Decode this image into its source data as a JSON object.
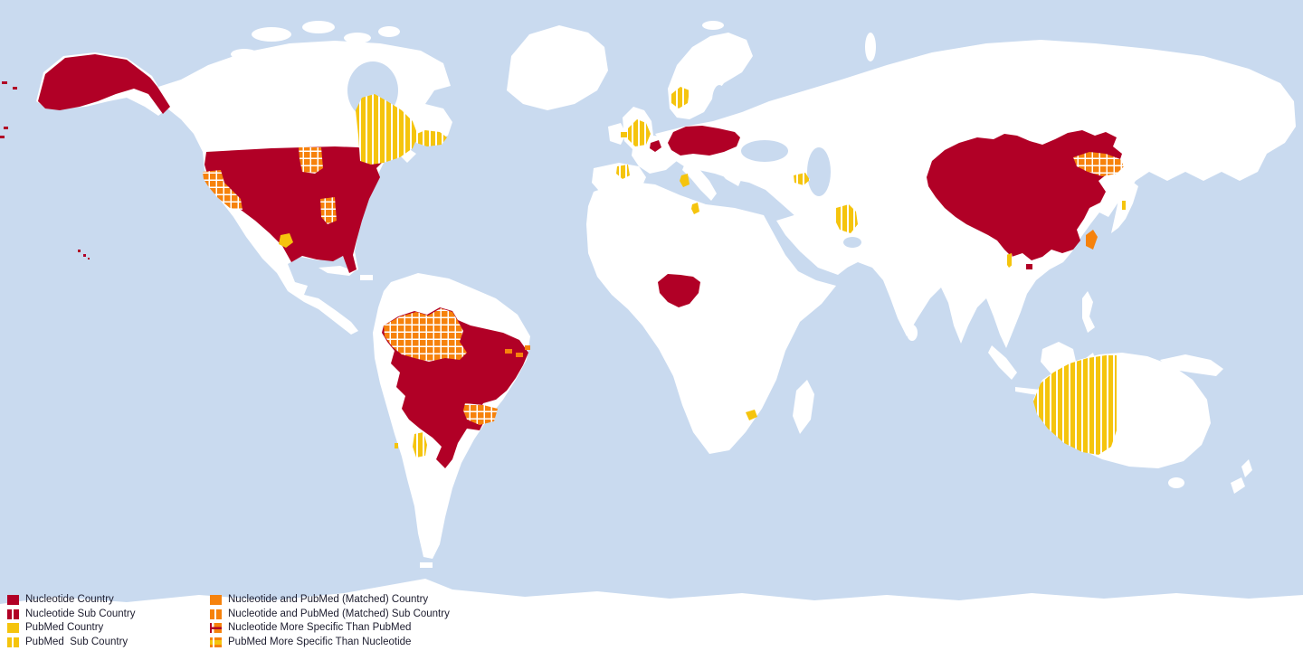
{
  "chart_data": {
    "type": "choropleth_map",
    "projection": "equirectangular world map",
    "categories": [
      "Nucleotide Country",
      "Nucleotide Sub Country",
      "PubMed Country",
      "PubMed  Sub Country",
      "Nucleotide and PubMed (Matched) Country",
      "Nucleotide and PubMed (Matched) Sub Country",
      "Nucleotide More Specific Than PubMed",
      "PubMed More Specific Than Nucleotide"
    ],
    "regions": [
      {
        "region": "United States (incl. Alaska, Hawaii)",
        "category": "Nucleotide Sub Country"
      },
      {
        "region": "California (US)",
        "category": "Nucleotide and PubMed (Matched) Sub Country"
      },
      {
        "region": "Minnesota (US)",
        "category": "Nucleotide and PubMed (Matched) Sub Country"
      },
      {
        "region": "Mississippi (US)",
        "category": "Nucleotide and PubMed (Matched) Sub Country"
      },
      {
        "region": "Quebec (Canada)",
        "category": "PubMed Sub Country"
      },
      {
        "region": "Newfoundland (Canada)",
        "category": "PubMed Sub Country"
      },
      {
        "region": "Central Mexico",
        "category": "PubMed Sub Country"
      },
      {
        "region": "Brazil",
        "category": "Nucleotide Sub Country"
      },
      {
        "region": "Amazonas (Brazil)",
        "category": "Nucleotide and PubMed (Matched) Sub Country"
      },
      {
        "region": "Sao Paulo (Brazil)",
        "category": "Nucleotide and PubMed (Matched) Sub Country"
      },
      {
        "region": "Northeast Brazil coast",
        "category": "Nucleotide and PubMed (Matched) Sub Country"
      },
      {
        "region": "Cordoba (Argentina)",
        "category": "PubMed Sub Country"
      },
      {
        "region": "Central Chile",
        "category": "PubMed Sub Country"
      },
      {
        "region": "England (United Kingdom)",
        "category": "PubMed Sub Country"
      },
      {
        "region": "Eastern Ireland",
        "category": "PubMed Sub Country"
      },
      {
        "region": "Southern Norway",
        "category": "PubMed Sub Country"
      },
      {
        "region": "Galicia (Spain)",
        "category": "PubMed Sub Country"
      },
      {
        "region": "Ile-de-France (France)",
        "category": "Nucleotide Sub Country"
      },
      {
        "region": "Germany",
        "category": "Nucleotide Country"
      },
      {
        "region": "Poland",
        "category": "Nucleotide Country"
      },
      {
        "region": "Sardinia (Italy)",
        "category": "PubMed Sub Country"
      },
      {
        "region": "Northern Tunisia",
        "category": "PubMed Sub Country"
      },
      {
        "region": "Eastern Turkey",
        "category": "PubMed Sub Country"
      },
      {
        "region": "Southern Iran",
        "category": "PubMed Sub Country"
      },
      {
        "region": "Nigeria",
        "category": "Nucleotide Country"
      },
      {
        "region": "Gauteng (South Africa)",
        "category": "PubMed Sub Country"
      },
      {
        "region": "China",
        "category": "Nucleotide Sub Country"
      },
      {
        "region": "Jilin (China)",
        "category": "Nucleotide and PubMed (Matched) Sub Country"
      },
      {
        "region": "Taiwan",
        "category": "Nucleotide and PubMed (Matched) Country"
      },
      {
        "region": "Honshu (Japan)",
        "category": "PubMed Sub Country"
      },
      {
        "region": "Myanmar",
        "category": "PubMed Sub Country"
      },
      {
        "region": "Western Australia",
        "category": "PubMed Sub Country"
      }
    ]
  },
  "map": {
    "ocean_color": "#C9DAEF",
    "land_color": "#FFFFFF",
    "colors": {
      "nucleotide": "#B10026",
      "pubmed": "#F5C40D",
      "matched": "#F6820C",
      "text": "#1C1C2E"
    },
    "regions": [
      {
        "id": "aleutians",
        "name": "Aleutian Islands",
        "fill": "nucleotide-solid"
      },
      {
        "id": "alaska",
        "name": "Alaska",
        "fill": "nucleotide-solid"
      },
      {
        "id": "hawaii",
        "name": "Hawaii",
        "fill": "nucleotide-solid"
      },
      {
        "id": "usa-mainland",
        "name": "United States",
        "fill": "nucleotide-solid"
      },
      {
        "id": "california",
        "name": "California",
        "fill": "matched-grid"
      },
      {
        "id": "minnesota",
        "name": "Minnesota",
        "fill": "matched-grid"
      },
      {
        "id": "mississippi",
        "name": "Mississippi",
        "fill": "matched-grid"
      },
      {
        "id": "quebec",
        "name": "Quebec",
        "fill": "pubmed-stripes"
      },
      {
        "id": "newfoundland",
        "name": "Newfoundland",
        "fill": "pubmed-stripes"
      },
      {
        "id": "mexico-city",
        "name": "Central Mexico",
        "fill": "pubmed-solid"
      },
      {
        "id": "brazil",
        "name": "Brazil",
        "fill": "nucleotide-solid"
      },
      {
        "id": "amazonas",
        "name": "Amazonas",
        "fill": "matched-grid"
      },
      {
        "id": "sao-paulo",
        "name": "Sao Paulo",
        "fill": "matched-grid"
      },
      {
        "id": "brazil-ne-coast",
        "name": "Northeast Brazil coast",
        "fill": "matched-solid"
      },
      {
        "id": "cordoba-argentina",
        "name": "Cordoba",
        "fill": "pubmed-stripes"
      },
      {
        "id": "chile-dot",
        "name": "Central Chile",
        "fill": "pubmed-solid"
      },
      {
        "id": "england",
        "name": "England",
        "fill": "pubmed-stripes"
      },
      {
        "id": "ireland-east",
        "name": "Eastern Ireland",
        "fill": "pubmed-solid"
      },
      {
        "id": "norway-south",
        "name": "Southern Norway",
        "fill": "pubmed-stripes"
      },
      {
        "id": "galicia",
        "name": "Galicia",
        "fill": "pubmed-stripes"
      },
      {
        "id": "ile-de-france",
        "name": "Ile-de-France",
        "fill": "nucleotide-solid"
      },
      {
        "id": "germany-poland",
        "name": "Germany and Poland",
        "fill": "nucleotide-solid"
      },
      {
        "id": "sardinia",
        "name": "Sardinia",
        "fill": "pubmed-solid"
      },
      {
        "id": "tunisia",
        "name": "Northern Tunisia",
        "fill": "pubmed-solid"
      },
      {
        "id": "turkey-east",
        "name": "Eastern Turkey",
        "fill": "pubmed-stripes"
      },
      {
        "id": "iran-south",
        "name": "Southern Iran",
        "fill": "pubmed-stripes"
      },
      {
        "id": "nigeria",
        "name": "Nigeria",
        "fill": "nucleotide-solid"
      },
      {
        "id": "gauteng",
        "name": "Gauteng",
        "fill": "pubmed-solid"
      },
      {
        "id": "china",
        "name": "China",
        "fill": "nucleotide-solid"
      },
      {
        "id": "jilin",
        "name": "Jilin",
        "fill": "matched-grid"
      },
      {
        "id": "taiwan",
        "name": "Taiwan",
        "fill": "matched-solid"
      },
      {
        "id": "japan-dot",
        "name": "Honshu",
        "fill": "pubmed-stripes"
      },
      {
        "id": "myanmar-dot",
        "name": "Myanmar",
        "fill": "pubmed-stripes"
      },
      {
        "id": "western-australia",
        "name": "Western Australia",
        "fill": "pubmed-stripes"
      }
    ]
  },
  "legend": {
    "columns": [
      {
        "items": [
          {
            "label": "Nucleotide Country",
            "swatch": "nuc"
          },
          {
            "label": "Nucleotide Sub Country",
            "swatch": "nuc-sub"
          },
          {
            "label": "PubMed Country",
            "swatch": "pub"
          },
          {
            "label": "PubMed  Sub Country",
            "swatch": "pub-sub"
          }
        ]
      },
      {
        "items": [
          {
            "label": "Nucleotide and PubMed (Matched) Country",
            "swatch": "match"
          },
          {
            "label": "Nucleotide and PubMed (Matched) Sub Country",
            "swatch": "match-sub"
          },
          {
            "label": "Nucleotide More Specific Than PubMed",
            "swatch": "nuc-spec"
          },
          {
            "label": "PubMed More Specific Than Nucleotide",
            "swatch": "pub-spec"
          }
        ]
      }
    ]
  }
}
